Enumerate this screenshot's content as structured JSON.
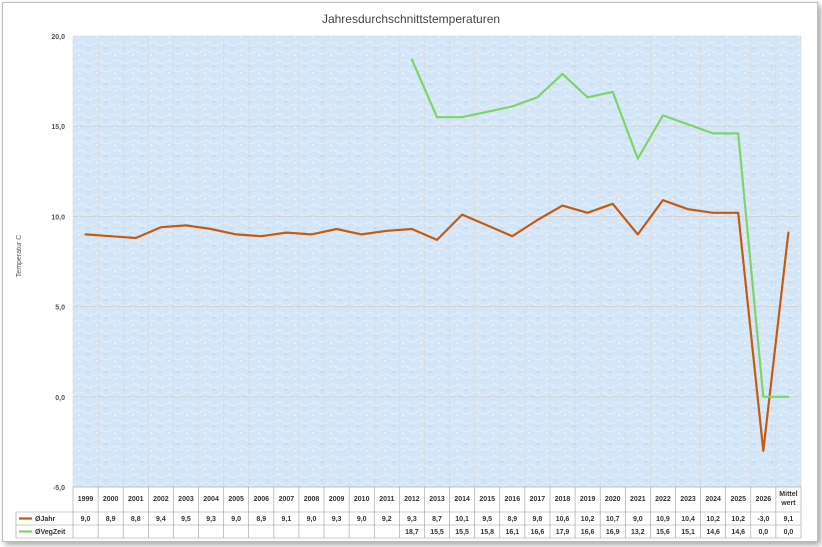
{
  "chart_data": {
    "type": "line",
    "title": "Jahresdurchschnittstemperaturen",
    "ylabel": "Temperatur C",
    "ylim": [
      -5.0,
      20.0
    ],
    "yticks": [
      "20,0",
      "15,0",
      "10,0",
      "5,0",
      "0,0",
      "-5,0"
    ],
    "categories": [
      "1999",
      "2000",
      "2001",
      "2002",
      "2003",
      "2004",
      "2005",
      "2006",
      "2007",
      "2008",
      "2009",
      "2010",
      "2011",
      "2012",
      "2013",
      "2014",
      "2015",
      "2016",
      "2017",
      "2018",
      "2019",
      "2020",
      "2021",
      "2022",
      "2023",
      "2024",
      "2025",
      "2026",
      "Mittel wert"
    ],
    "series": [
      {
        "name": "ØJahr",
        "color": "#c55a11",
        "values": [
          9.0,
          8.9,
          8.8,
          9.4,
          9.5,
          9.3,
          9.0,
          8.9,
          9.1,
          9.0,
          9.3,
          9.0,
          9.2,
          9.3,
          8.7,
          10.1,
          9.5,
          8.9,
          9.8,
          10.6,
          10.2,
          10.7,
          9.0,
          10.9,
          10.4,
          10.2,
          10.2,
          -3.0,
          9.1
        ],
        "labels": [
          "9,0",
          "8,9",
          "8,8",
          "9,4",
          "9,5",
          "9,3",
          "9,0",
          "8,9",
          "9,1",
          "9,0",
          "9,3",
          "9,0",
          "9,2",
          "9,3",
          "8,7",
          "10,1",
          "9,5",
          "8,9",
          "9,8",
          "10,6",
          "10,2",
          "10,7",
          "9,0",
          "10,9",
          "10,4",
          "10,2",
          "10,2",
          "-3,0",
          "9,1"
        ]
      },
      {
        "name": "ØVegZeit",
        "color": "#7ed36b",
        "values": [
          null,
          null,
          null,
          null,
          null,
          null,
          null,
          null,
          null,
          null,
          null,
          null,
          null,
          18.7,
          15.5,
          15.5,
          15.8,
          16.1,
          16.6,
          17.9,
          16.6,
          16.9,
          13.2,
          15.6,
          15.1,
          14.6,
          14.6,
          0.0,
          0.0
        ],
        "labels": [
          "",
          "",
          "",
          "",
          "",
          "",
          "",
          "",
          "",
          "",
          "",
          "",
          "",
          "18,7",
          "15,5",
          "15,5",
          "15,8",
          "16,1",
          "16,6",
          "17,9",
          "16,6",
          "16,9",
          "13,2",
          "15,6",
          "15,1",
          "14,6",
          "14,6",
          "0,0",
          "0,0"
        ]
      }
    ],
    "grid": true,
    "legend": "data table"
  }
}
